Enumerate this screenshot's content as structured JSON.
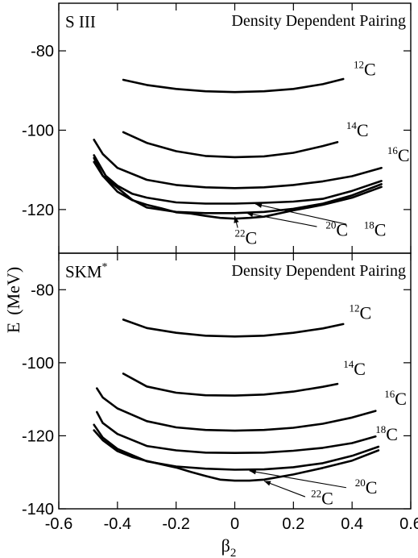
{
  "figure": {
    "ylabel": "E",
    "ylabel_unit": "(MeV)",
    "xlabel_base": "β",
    "xlabel_sub": "2"
  },
  "chart_data": [
    {
      "type": "line",
      "title": "Density Dependent Pairing",
      "model_base": "S III",
      "model_sup": "",
      "xlim": [
        -0.6,
        0.6
      ],
      "ylim": [
        -131,
        -68
      ],
      "yticks": [
        -80,
        -100,
        -120
      ],
      "xtick_labels_shown": false,
      "grid": false,
      "series": [
        {
          "name": "12C",
          "iso_sup": "12",
          "iso_el": "C",
          "label_at": [
            0.405,
            -86.2
          ],
          "x": [
            -0.38,
            -0.3,
            -0.2,
            -0.1,
            0,
            0.1,
            0.2,
            0.3,
            0.37
          ],
          "y": [
            -87.3,
            -88.6,
            -89.6,
            -90.2,
            -90.4,
            -90.2,
            -89.6,
            -88.4,
            -87.1
          ]
        },
        {
          "name": "14C",
          "iso_sup": "14",
          "iso_el": "C",
          "label_at": [
            0.38,
            -101.5
          ],
          "x": [
            -0.38,
            -0.3,
            -0.2,
            -0.1,
            0,
            0.1,
            0.2,
            0.3,
            0.35
          ],
          "y": [
            -100.5,
            -103.2,
            -105.3,
            -106.5,
            -106.8,
            -106.6,
            -105.7,
            -104.0,
            -103.0
          ]
        },
        {
          "name": "16C",
          "iso_sup": "16",
          "iso_el": "C",
          "label_at": [
            0.52,
            -107.8
          ],
          "x": [
            -0.48,
            -0.45,
            -0.4,
            -0.3,
            -0.2,
            -0.1,
            0,
            0.1,
            0.2,
            0.3,
            0.4,
            0.5
          ],
          "y": [
            -102.4,
            -106.0,
            -109.5,
            -112.5,
            -113.8,
            -114.4,
            -114.6,
            -114.4,
            -113.8,
            -112.9,
            -111.6,
            -109.5
          ]
        },
        {
          "name": "18C",
          "iso_sup": "18",
          "iso_el": "C",
          "label_at": [
            0.44,
            -126.6
          ],
          "arrow_from": [
            0.38,
            -123.7
          ],
          "arrow_to": [
            0.07,
            -118.6
          ],
          "x": [
            -0.48,
            -0.44,
            -0.4,
            -0.35,
            -0.3,
            -0.2,
            -0.1,
            0,
            0.1,
            0.2,
            0.3,
            0.4,
            0.5
          ],
          "y": [
            -106.3,
            -111.5,
            -114.0,
            -116.0,
            -117.0,
            -118.2,
            -118.5,
            -118.5,
            -118.3,
            -118.0,
            -117.3,
            -115.3,
            -112.8
          ]
        },
        {
          "name": "20C",
          "iso_sup": "20",
          "iso_el": "C",
          "label_at": [
            0.31,
            -126.6
          ],
          "arrow_from": [
            0.28,
            -124.3
          ],
          "arrow_to": [
            0.04,
            -120.9
          ],
          "x": [
            -0.48,
            -0.45,
            -0.4,
            -0.35,
            -0.3,
            -0.2,
            -0.1,
            0,
            0.1,
            0.2,
            0.3,
            0.4,
            0.5
          ],
          "y": [
            -107.0,
            -111.5,
            -114.5,
            -117.5,
            -119.5,
            -120.6,
            -120.9,
            -120.9,
            -120.6,
            -119.8,
            -118.5,
            -116.4,
            -113.6
          ]
        },
        {
          "name": "22C",
          "iso_sup": "22",
          "iso_el": "C",
          "label_at": [
            0.0,
            -128.7
          ],
          "arrow_from": [
            0.01,
            -124.6
          ],
          "arrow_to": [
            0.0,
            -121.7
          ],
          "x": [
            -0.48,
            -0.45,
            -0.4,
            -0.35,
            -0.3,
            -0.25,
            -0.2,
            -0.15,
            -0.1,
            -0.05,
            0,
            0.05,
            0.1,
            0.2,
            0.3,
            0.4,
            0.5
          ],
          "y": [
            -108.0,
            -111.5,
            -115.5,
            -117.6,
            -118.8,
            -119.7,
            -120.7,
            -121.0,
            -121.6,
            -122.1,
            -122.3,
            -122.1,
            -121.8,
            -120.2,
            -118.8,
            -117.0,
            -114.3
          ]
        }
      ]
    },
    {
      "type": "line",
      "title": "Density Dependent Pairing",
      "model_base": "SKM",
      "model_sup": "*",
      "xlim": [
        -0.6,
        0.6
      ],
      "ylim": [
        -140,
        -70
      ],
      "yticks": [
        -80,
        -100,
        -120,
        -140
      ],
      "xticks": [
        -0.6,
        -0.4,
        -0.2,
        0,
        0.2,
        0.4,
        0.6
      ],
      "xtick_labels": [
        "-0.6",
        "-0.4",
        "-0.2",
        "0",
        "0.2",
        "0.4",
        "0.6"
      ],
      "grid": false,
      "series": [
        {
          "name": "12C",
          "iso_sup": "12",
          "iso_el": "C",
          "label_at": [
            0.39,
            -88.0
          ],
          "x": [
            -0.38,
            -0.3,
            -0.2,
            -0.1,
            0,
            0.1,
            0.2,
            0.3,
            0.37
          ],
          "y": [
            -88.2,
            -90.5,
            -91.8,
            -92.6,
            -92.8,
            -92.6,
            -91.8,
            -90.6,
            -89.4
          ]
        },
        {
          "name": "14C",
          "iso_sup": "14",
          "iso_el": "C",
          "label_at": [
            0.37,
            -103.3
          ],
          "x": [
            -0.38,
            -0.3,
            -0.2,
            -0.1,
            0,
            0.1,
            0.2,
            0.3,
            0.35
          ],
          "y": [
            -103.0,
            -106.5,
            -108.2,
            -108.9,
            -109.0,
            -108.7,
            -107.9,
            -106.6,
            -105.8
          ]
        },
        {
          "name": "16C",
          "iso_sup": "16",
          "iso_el": "C",
          "label_at": [
            0.51,
            -111.5
          ],
          "x": [
            -0.47,
            -0.45,
            -0.4,
            -0.3,
            -0.2,
            -0.1,
            0,
            0.1,
            0.2,
            0.3,
            0.4,
            0.48
          ],
          "y": [
            -107.0,
            -109.5,
            -112.5,
            -116.0,
            -117.7,
            -118.4,
            -118.6,
            -118.4,
            -117.8,
            -116.7,
            -115.0,
            -113.2
          ]
        },
        {
          "name": "18C",
          "iso_sup": "18",
          "iso_el": "C",
          "label_at": [
            0.48,
            -121.2
          ],
          "x": [
            -0.47,
            -0.45,
            -0.4,
            -0.3,
            -0.2,
            -0.1,
            0,
            0.1,
            0.2,
            0.3,
            0.4,
            0.48
          ],
          "y": [
            -113.5,
            -116.5,
            -119.5,
            -122.8,
            -124.0,
            -124.6,
            -124.7,
            -124.6,
            -124.1,
            -123.3,
            -122.0,
            -120.2
          ]
        },
        {
          "name": "20C",
          "iso_sup": "20",
          "iso_el": "C",
          "label_at": [
            0.41,
            -135.8
          ],
          "arrow_from": [
            0.38,
            -134.2
          ],
          "arrow_to": [
            0.05,
            -129.6
          ],
          "x": [
            -0.48,
            -0.45,
            -0.4,
            -0.3,
            -0.2,
            -0.1,
            0,
            0.1,
            0.2,
            0.3,
            0.4,
            0.49
          ],
          "y": [
            -117.0,
            -120.5,
            -123.6,
            -127.0,
            -128.4,
            -129.0,
            -129.3,
            -129.2,
            -128.6,
            -127.5,
            -125.5,
            -123.0
          ]
        },
        {
          "name": "22C",
          "iso_sup": "22",
          "iso_el": "C",
          "label_at": [
            0.26,
            -138.8
          ],
          "arrow_from": [
            0.24,
            -136.7
          ],
          "arrow_to": [
            0.1,
            -132.4
          ],
          "x": [
            -0.48,
            -0.45,
            -0.4,
            -0.35,
            -0.3,
            -0.25,
            -0.2,
            -0.15,
            -0.1,
            -0.05,
            0,
            0.05,
            0.1,
            0.2,
            0.3,
            0.4,
            0.49
          ],
          "y": [
            -118.5,
            -121.2,
            -124.2,
            -125.8,
            -126.9,
            -127.8,
            -128.7,
            -129.9,
            -131.0,
            -132.0,
            -132.3,
            -132.3,
            -132.0,
            -130.6,
            -128.8,
            -126.8,
            -124.0
          ]
        }
      ]
    }
  ]
}
